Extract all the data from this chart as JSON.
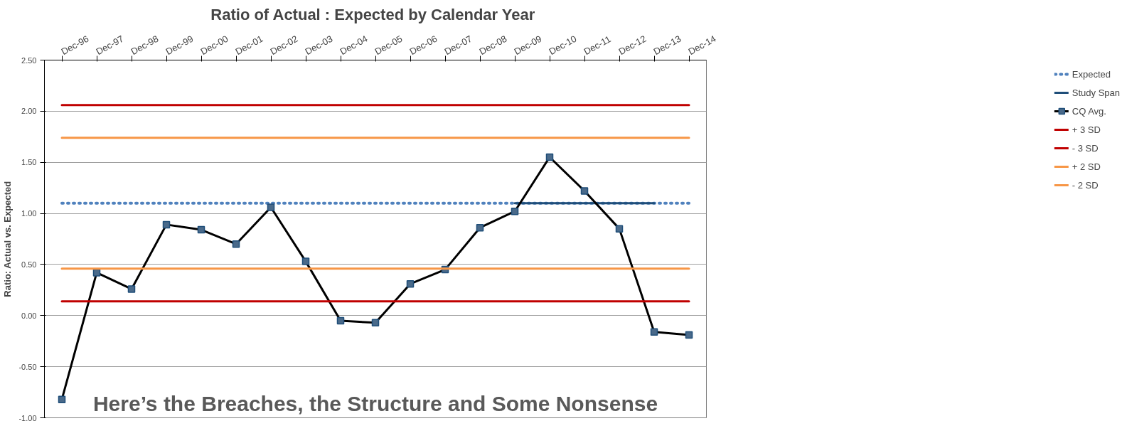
{
  "chart_data": {
    "type": "line",
    "title": "Ratio of Actual : Expected by  Calendar Year",
    "ylabel": "Ratio: Actual vs. Expected",
    "categories": [
      "Dec-96",
      "Dec-97",
      "Dec-98",
      "Dec-99",
      "Dec-00",
      "Dec-01",
      "Dec-02",
      "Dec-03",
      "Dec-04",
      "Dec-05",
      "Dec-06",
      "Dec-07",
      "Dec-08",
      "Dec-09",
      "Dec-10",
      "Dec-11",
      "Dec-12",
      "Dec-13",
      "Dec-14"
    ],
    "series": [
      {
        "name": "Expected",
        "color": "#4f81bd",
        "line_style": "dotted",
        "marker": "none",
        "values": [
          1.1,
          1.1,
          1.1,
          1.1,
          1.1,
          1.1,
          1.1,
          1.1,
          1.1,
          1.1,
          1.1,
          1.1,
          1.1,
          1.1,
          1.1,
          1.1,
          1.1,
          1.1,
          1.1
        ]
      },
      {
        "name": "Study Span",
        "color": "#1f4e79",
        "line_style": "solid",
        "marker": "none",
        "values": [
          null,
          null,
          null,
          null,
          null,
          null,
          null,
          null,
          null,
          null,
          null,
          null,
          null,
          1.1,
          1.1,
          1.1,
          1.1,
          1.1,
          null
        ]
      },
      {
        "name": "CQ Avg.",
        "color": "#000000",
        "line_style": "solid",
        "marker": "square",
        "values": [
          -0.82,
          0.42,
          0.26,
          0.89,
          0.84,
          0.7,
          1.06,
          0.53,
          -0.05,
          -0.07,
          0.31,
          0.45,
          0.86,
          1.02,
          1.55,
          1.22,
          0.85,
          -0.16,
          -0.19
        ]
      },
      {
        "name": "+ 3 SD",
        "color": "#c00000",
        "line_style": "solid",
        "marker": "none",
        "values": [
          2.06,
          2.06,
          2.06,
          2.06,
          2.06,
          2.06,
          2.06,
          2.06,
          2.06,
          2.06,
          2.06,
          2.06,
          2.06,
          2.06,
          2.06,
          2.06,
          2.06,
          2.06,
          2.06
        ]
      },
      {
        "name": "- 3 SD",
        "color": "#c00000",
        "line_style": "solid",
        "marker": "none",
        "values": [
          0.14,
          0.14,
          0.14,
          0.14,
          0.14,
          0.14,
          0.14,
          0.14,
          0.14,
          0.14,
          0.14,
          0.14,
          0.14,
          0.14,
          0.14,
          0.14,
          0.14,
          0.14,
          0.14
        ]
      },
      {
        "name": "+ 2 SD",
        "color": "#f79646",
        "line_style": "solid",
        "marker": "none",
        "values": [
          1.74,
          1.74,
          1.74,
          1.74,
          1.74,
          1.74,
          1.74,
          1.74,
          1.74,
          1.74,
          1.74,
          1.74,
          1.74,
          1.74,
          1.74,
          1.74,
          1.74,
          1.74,
          1.74
        ]
      },
      {
        "name": "- 2 SD",
        "color": "#f79646",
        "line_style": "solid",
        "marker": "none",
        "values": [
          0.46,
          0.46,
          0.46,
          0.46,
          0.46,
          0.46,
          0.46,
          0.46,
          0.46,
          0.46,
          0.46,
          0.46,
          0.46,
          0.46,
          0.46,
          0.46,
          0.46,
          0.46,
          0.46
        ]
      }
    ],
    "ylim": [
      -1.0,
      2.5
    ],
    "yticks": [
      {
        "value": -1.0,
        "label": "-1.00"
      },
      {
        "value": -0.5,
        "label": "-0.50"
      },
      {
        "value": 0.0,
        "label": "0.00"
      },
      {
        "value": 0.5,
        "label": "0.50"
      },
      {
        "value": 1.0,
        "label": "1.00"
      },
      {
        "value": 1.5,
        "label": "1.50"
      },
      {
        "value": 2.0,
        "label": "2.00"
      },
      {
        "value": 2.5,
        "label": "2.50"
      }
    ],
    "grid": "y",
    "legend": "right",
    "annotations": [
      "Here’s the Breaches, the Structure and Some Nonsense"
    ]
  }
}
